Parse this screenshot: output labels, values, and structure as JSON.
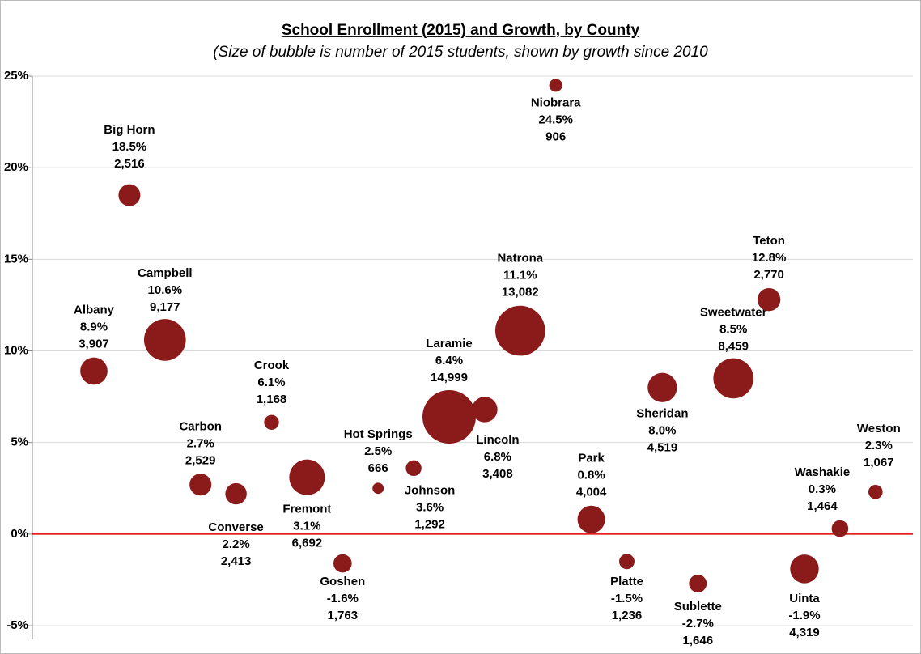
{
  "chart_data": {
    "type": "bubble",
    "title": "School Enrollment (2015) and Growth, by County",
    "subtitle": "(Size of bubble is number of 2015 students, shown by growth since 2010",
    "categories": [
      "Albany",
      "Big Horn",
      "Campbell",
      "Carbon",
      "Converse",
      "Crook",
      "Fremont",
      "Goshen",
      "Hot Springs",
      "Johnson",
      "Laramie",
      "Lincoln",
      "Natrona",
      "Niobrara",
      "Park",
      "Platte",
      "Sheridan",
      "Sublette",
      "Sweetwater",
      "Teton",
      "Uinta",
      "Washakie",
      "Weston"
    ],
    "series": [
      {
        "color": "#8b1a1a",
        "values": [
          8.9,
          18.5,
          10.6,
          2.7,
          2.2,
          6.1,
          3.1,
          -1.6,
          2.5,
          3.6,
          6.4,
          6.8,
          11.1,
          24.5,
          0.8,
          -1.5,
          8.0,
          -2.7,
          8.5,
          12.8,
          -1.9,
          0.3,
          2.3
        ],
        "value_labels": [
          "8.9%",
          "18.5%",
          "10.6%",
          "2.7%",
          "2.2%",
          "6.1%",
          "3.1%",
          "-1.6%",
          "2.5%",
          "3.6%",
          "6.4%",
          "6.8%",
          "11.1%",
          "24.5%",
          "0.8%",
          "-1.5%",
          "8.0%",
          "-2.7%",
          "8.5%",
          "12.8%",
          "-1.9%",
          "0.3%",
          "2.3%"
        ],
        "sizes": [
          3907,
          2516,
          9177,
          2529,
          2413,
          1168,
          6692,
          1763,
          666,
          1292,
          14999,
          3408,
          13082,
          906,
          4004,
          1236,
          4519,
          1646,
          8459,
          2770,
          4319,
          1464,
          1067
        ],
        "size_labels": [
          "3,907",
          "2,516",
          "9,177",
          "2,529",
          "2,413",
          "1,168",
          "6,692",
          "1,763",
          "666",
          "1,292",
          "14,999",
          "3,408",
          "13,082",
          "906",
          "4,004",
          "1,236",
          "4,519",
          "1,646",
          "8,459",
          "2,770",
          "4,319",
          "1,464",
          "1,067"
        ]
      }
    ],
    "ylim": [
      -5.75,
      25
    ],
    "yticks": [
      {
        "value": -5,
        "label": "-5%"
      },
      {
        "value": 0,
        "label": "0%"
      },
      {
        "value": 5,
        "label": "5%"
      },
      {
        "value": 10,
        "label": "10%"
      },
      {
        "value": 15,
        "label": "15%"
      },
      {
        "value": 20,
        "label": "20%"
      },
      {
        "value": 25,
        "label": "25%"
      }
    ],
    "grid": true,
    "zero_line_color": "#e00000",
    "negative_label_color": "#ff0000"
  }
}
